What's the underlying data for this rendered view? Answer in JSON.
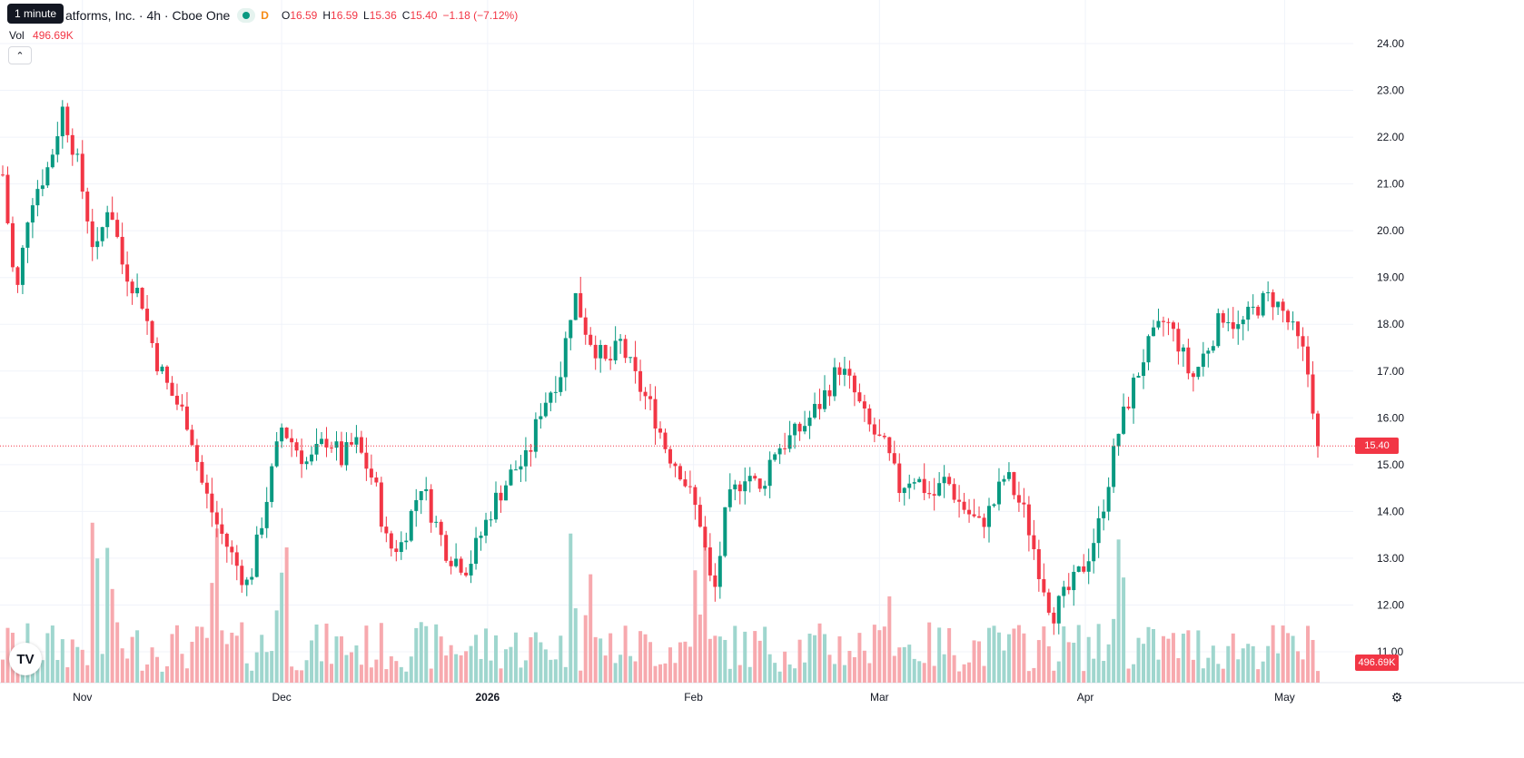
{
  "legend": {
    "title": "atforms, Inc. · 4h · Cboe One",
    "interval_badge": "D",
    "open_label": "O",
    "open": "16.59",
    "high_label": "H",
    "high": "16.59",
    "low_label": "L",
    "low": "15.36",
    "close_label": "C",
    "close": "15.40",
    "change": "−1.18 (−7.12%)",
    "tooltip": "1 minute",
    "volume_label": "Vol",
    "volume": "496.69K"
  },
  "colors": {
    "up": "#089981",
    "down": "#f23645",
    "up_volume": "#9fd6ce",
    "down_volume": "#f7a9ae",
    "grid": "#f0f3fa",
    "price_line": "#f23645"
  },
  "icons": {
    "logo": "tradingview-logo-icon",
    "collapse": "chevron-up-icon",
    "settings": "gear-icon"
  },
  "price_axis": {
    "last_price_label": "15.40",
    "last_volume_label": "496.69K"
  },
  "chart_data": {
    "type": "candlestick",
    "x_ticks": [
      "Nov",
      "Dec",
      "2026",
      "Feb",
      "Mar",
      "Apr",
      "May"
    ],
    "y_ticks": [
      "11.00",
      "12.00",
      "13.00",
      "14.00",
      "15.00",
      "16.00",
      "17.00",
      "18.00",
      "19.00",
      "20.00",
      "21.00",
      "22.00",
      "23.00",
      "24.00"
    ],
    "ylim": [
      10.6,
      24.4
    ],
    "last_price": 15.4,
    "grid": true,
    "close_path": [
      [
        "2025-10-20",
        21.2
      ],
      [
        "2025-10-22",
        18.5
      ],
      [
        "2025-10-24",
        20.6
      ],
      [
        "2025-10-27",
        21.4
      ],
      [
        "2025-10-29",
        22.6
      ],
      [
        "2025-10-31",
        21.6
      ],
      [
        "2025-11-03",
        19.4
      ],
      [
        "2025-11-05",
        20.7
      ],
      [
        "2025-11-07",
        19.3
      ],
      [
        "2025-11-10",
        18.5
      ],
      [
        "2025-11-12",
        17.3
      ],
      [
        "2025-11-14",
        16.6
      ],
      [
        "2025-11-17",
        15.9
      ],
      [
        "2025-11-19",
        14.6
      ],
      [
        "2025-11-21",
        13.8
      ],
      [
        "2025-11-24",
        12.9
      ],
      [
        "2025-11-26",
        12.4
      ],
      [
        "2025-11-28",
        13.8
      ],
      [
        "2025-12-01",
        15.8
      ],
      [
        "2025-12-03",
        15.4
      ],
      [
        "2025-12-05",
        15.0
      ],
      [
        "2025-12-08",
        15.6
      ],
      [
        "2025-12-10",
        15.1
      ],
      [
        "2025-12-12",
        15.5
      ],
      [
        "2025-12-15",
        14.6
      ],
      [
        "2025-12-17",
        13.2
      ],
      [
        "2025-12-19",
        13.3
      ],
      [
        "2025-12-22",
        14.6
      ],
      [
        "2025-12-24",
        13.8
      ],
      [
        "2025-12-26",
        13.1
      ],
      [
        "2025-12-29",
        12.8
      ],
      [
        "2026-01-02",
        14.2
      ],
      [
        "2026-01-05",
        14.9
      ],
      [
        "2026-01-07",
        15.1
      ],
      [
        "2026-01-09",
        16.2
      ],
      [
        "2026-01-12",
        17.0
      ],
      [
        "2026-01-14",
        18.7
      ],
      [
        "2026-01-16",
        17.8
      ],
      [
        "2026-01-19",
        17.1
      ],
      [
        "2026-01-21",
        17.6
      ],
      [
        "2026-01-23",
        16.9
      ],
      [
        "2026-01-26",
        16.1
      ],
      [
        "2026-01-28",
        15.3
      ],
      [
        "2026-01-30",
        14.9
      ],
      [
        "2026-02-02",
        13.8
      ],
      [
        "2026-02-04",
        12.1
      ],
      [
        "2026-02-06",
        14.1
      ],
      [
        "2026-02-09",
        14.9
      ],
      [
        "2026-02-11",
        14.4
      ],
      [
        "2026-02-13",
        15.3
      ],
      [
        "2026-02-16",
        15.6
      ],
      [
        "2026-02-18",
        15.9
      ],
      [
        "2026-02-20",
        16.3
      ],
      [
        "2026-02-23",
        17.1
      ],
      [
        "2026-02-25",
        16.6
      ],
      [
        "2026-02-27",
        15.9
      ],
      [
        "2026-03-02",
        15.3
      ],
      [
        "2026-03-04",
        14.5
      ],
      [
        "2026-03-06",
        14.8
      ],
      [
        "2026-03-09",
        14.3
      ],
      [
        "2026-03-11",
        14.7
      ],
      [
        "2026-03-13",
        14.2
      ],
      [
        "2026-03-16",
        13.7
      ],
      [
        "2026-03-18",
        14.1
      ],
      [
        "2026-03-20",
        14.8
      ],
      [
        "2026-03-23",
        13.9
      ],
      [
        "2026-03-25",
        12.8
      ],
      [
        "2026-03-27",
        11.8
      ],
      [
        "2026-03-30",
        12.4
      ],
      [
        "2026-04-01",
        12.9
      ],
      [
        "2026-04-03",
        13.7
      ],
      [
        "2026-04-06",
        15.7
      ],
      [
        "2026-04-08",
        16.6
      ],
      [
        "2026-04-10",
        17.4
      ],
      [
        "2026-04-13",
        18.1
      ],
      [
        "2026-04-15",
        17.6
      ],
      [
        "2026-04-17",
        16.8
      ],
      [
        "2026-04-20",
        17.7
      ],
      [
        "2026-04-22",
        18.3
      ],
      [
        "2026-04-24",
        17.9
      ],
      [
        "2026-04-27",
        18.4
      ],
      [
        "2026-04-29",
        18.6
      ],
      [
        "2026-05-01",
        18.2
      ],
      [
        "2026-05-04",
        17.3
      ],
      [
        "2026-05-05",
        16.6
      ],
      [
        "2026-05-06",
        15.4
      ]
    ],
    "volume_spikes": [
      [
        "2025-11-03",
        1
      ],
      [
        "2025-11-05",
        1
      ],
      [
        "2025-11-21",
        1
      ],
      [
        "2025-12-01",
        1
      ],
      [
        "2026-01-14",
        1
      ],
      [
        "2026-01-16",
        1
      ],
      [
        "2026-02-02",
        1
      ],
      [
        "2026-03-02",
        1
      ],
      [
        "2026-04-06",
        1
      ]
    ]
  }
}
